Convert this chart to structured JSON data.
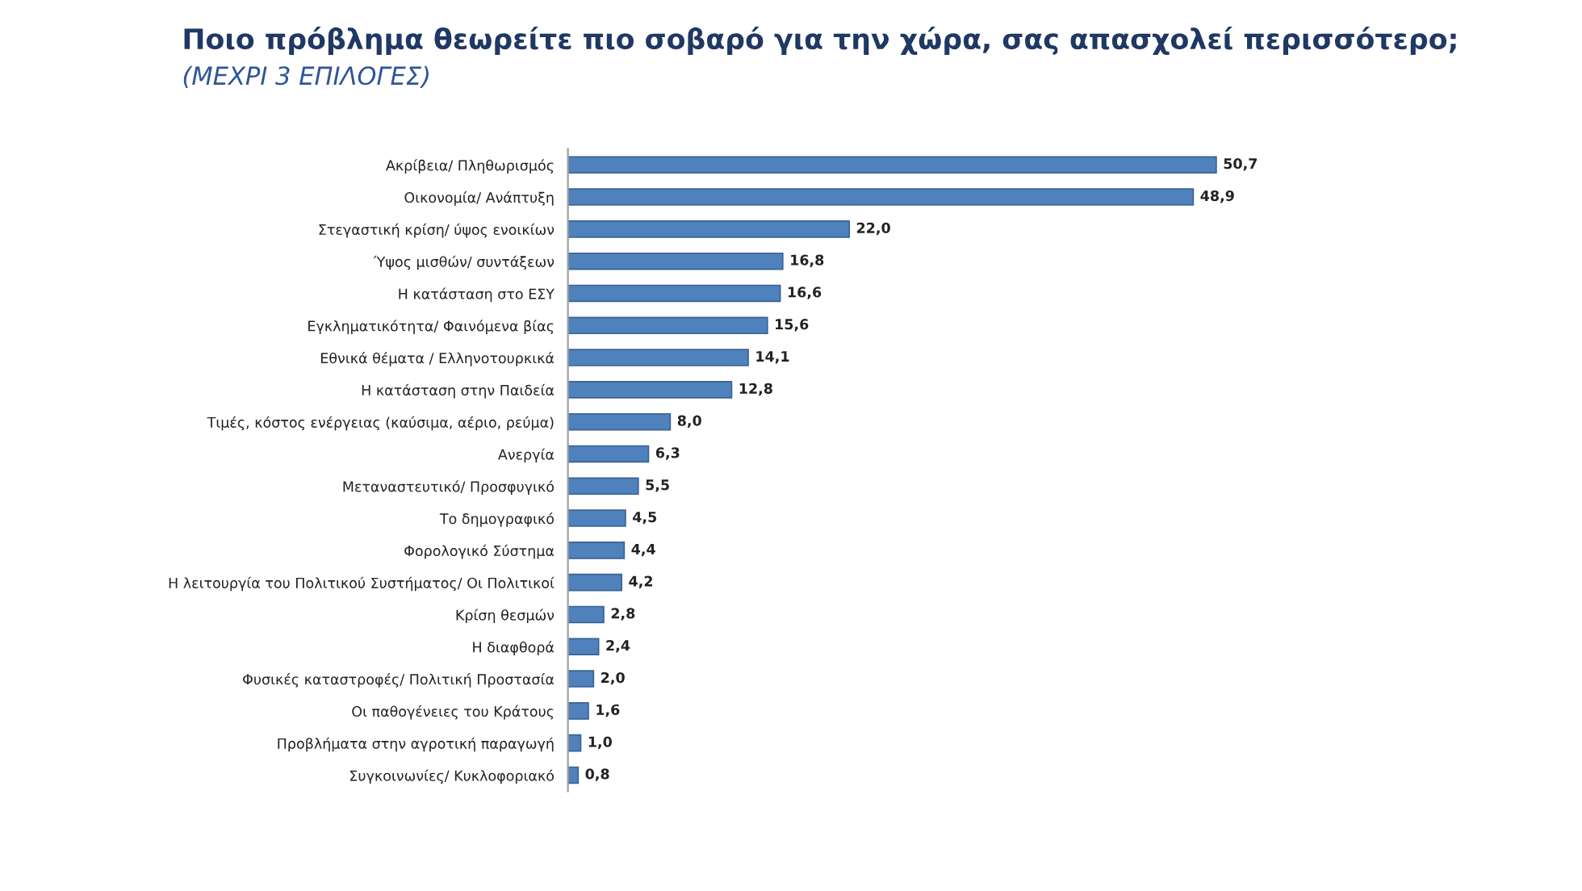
{
  "chart_data": {
    "type": "bar",
    "orientation": "horizontal",
    "title": "Ποιο πρόβλημα θεωρείτε πιο σοβαρό για την χώρα, σας απασχολεί περισσότερο;",
    "subtitle": "(ΜΕΧΡΙ 3 ΕΠΙΛΟΓΕΣ)",
    "categories": [
      "Ακρίβεια/ Πληθωρισμός",
      "Οικονομία/ Ανάπτυξη",
      "Στεγαστική κρίση/ ύψος ενοικίων",
      "Ύψος μισθών/ συντάξεων",
      "Η κατάσταση στο ΕΣΥ",
      "Εγκληματικότητα/ Φαινόμενα βίας",
      "Εθνικά θέματα / Ελληνοτουρκικά",
      "Η κατάσταση στην Παιδεία",
      "Τιμές, κόστος ενέργειας (καύσιμα, αέριο, ρεύμα)",
      "Ανεργία",
      "Μεταναστευτικό/ Προσφυγικό",
      "Το δημογραφικό",
      "Φορολογικό Σύστημα",
      "Η λειτουργία του Πολιτικού Συστήματος/ Οι Πολιτικοί",
      "Κρίση θεσμών",
      "Η διαφθορά",
      "Φυσικές καταστροφές/ Πολιτική Προστασία",
      "Οι παθογένειες του Κράτους",
      "Προβλήματα στην αγροτική παραγωγή",
      "Συγκοινωνίες/ Κυκλοφοριακό"
    ],
    "values": [
      50.7,
      48.9,
      22.0,
      16.8,
      16.6,
      15.6,
      14.1,
      12.8,
      8.0,
      6.3,
      5.5,
      4.5,
      4.4,
      4.2,
      2.8,
      2.4,
      2.0,
      1.6,
      1.0,
      0.8
    ],
    "value_labels": [
      "50,7",
      "48,9",
      "22,0",
      "16,8",
      "16,6",
      "15,6",
      "14,1",
      "12,8",
      "8,0",
      "6,3",
      "5,5",
      "4,5",
      "4,4",
      "4,2",
      "2,8",
      "2,4",
      "2,0",
      "1,6",
      "1,0",
      "0,8"
    ],
    "color": "#4f81bd",
    "tick_labels": "y",
    "grid": false,
    "legend": false
  }
}
